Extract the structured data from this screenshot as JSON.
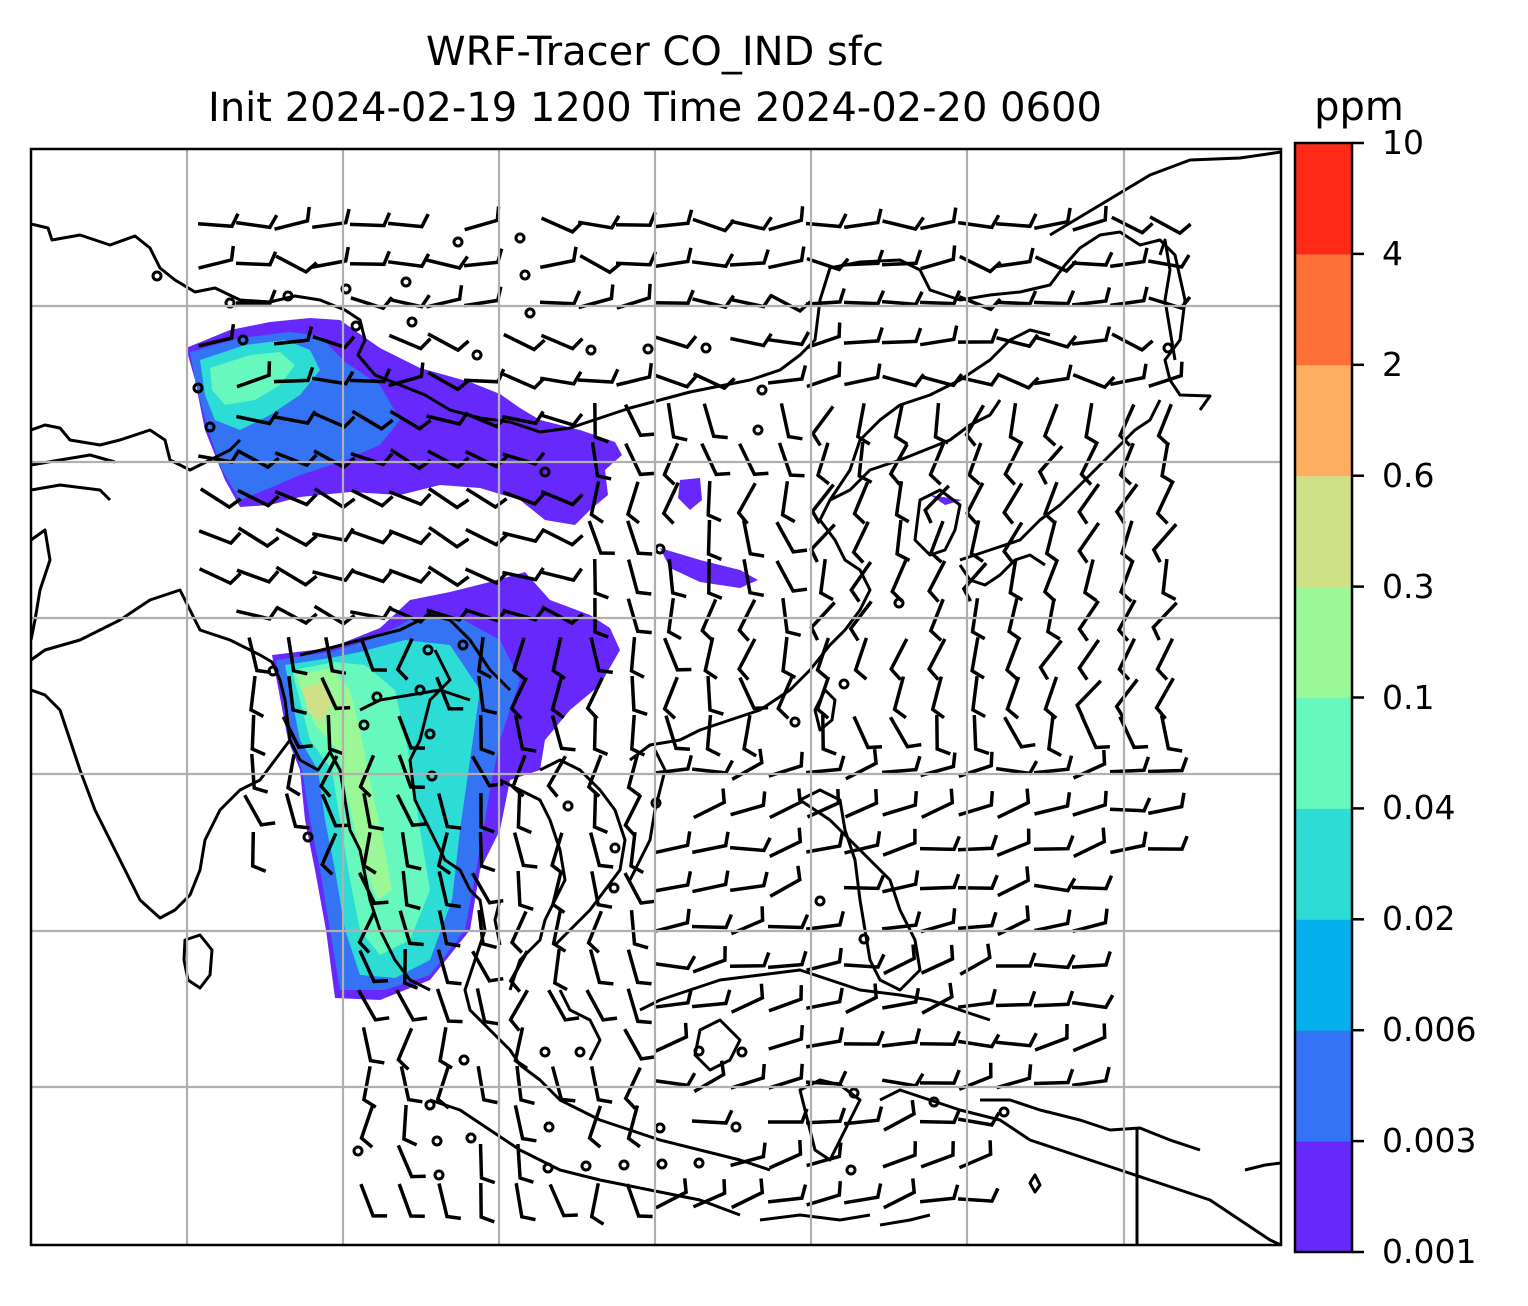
{
  "title_line1": "WRF-Tracer CO_IND sfc",
  "title_line2": "Init 2024-02-19 1200 Time 2024-02-20 0600",
  "colorbar": {
    "unit": "ppm",
    "levels": [
      "0.001",
      "0.003",
      "0.006",
      "0.02",
      "0.04",
      "0.1",
      "0.3",
      "0.6",
      "2",
      "4",
      "10"
    ],
    "colors": [
      "#6628fb",
      "#3373f4",
      "#06b0ec",
      "#2ddcd4",
      "#66f8bc",
      "#9bf897",
      "#cfe087",
      "#feae61",
      "#fe7038",
      "#fe2a17"
    ]
  },
  "map": {
    "plume_colors": {
      "c1": "#6628fb",
      "c2": "#3373f4",
      "c4": "#2ddcd4",
      "c5": "#66f8bc",
      "c6": "#9bf897",
      "c7": "#cfe087"
    },
    "gridline_color": "#b0b0b0",
    "coastline_color": "#000000",
    "wind_barbs": "black"
  }
}
